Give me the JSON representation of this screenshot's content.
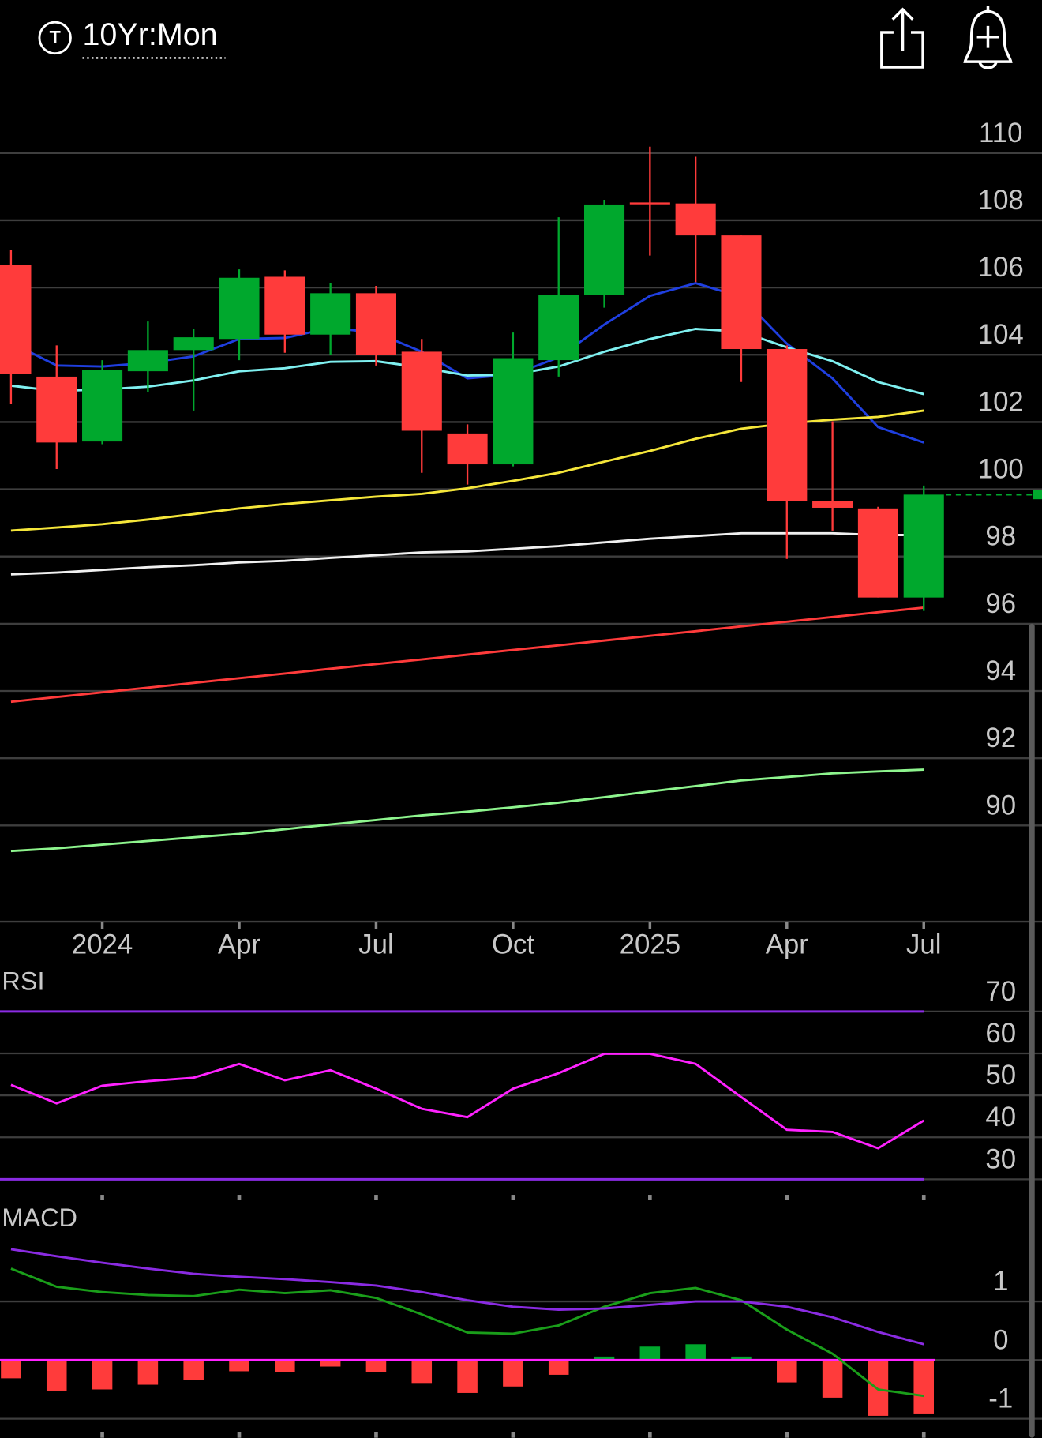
{
  "header": {
    "badge": "T",
    "title": "10Yr:Mon"
  },
  "chart_data": [
    {
      "type": "candlestick",
      "categories": [
        null,
        null,
        "2024",
        null,
        null,
        "Apr",
        null,
        null,
        "Jul",
        null,
        null,
        "Oct",
        null,
        null,
        "2025",
        null,
        null,
        "Apr",
        null,
        null,
        "Jul"
      ],
      "open": [
        106.68,
        103.35,
        101.42,
        103.51,
        104.14,
        104.47,
        106.32,
        104.6,
        105.83,
        104.09,
        101.66,
        100.74,
        103.84,
        105.78,
        108.53,
        108.5,
        107.55,
        104.17,
        99.65,
        99.43,
        96.78
      ],
      "high": [
        107.11,
        104.28,
        103.84,
        104.99,
        104.77,
        106.54,
        106.51,
        106.13,
        106.05,
        104.47,
        101.93,
        104.66,
        108.09,
        108.61,
        110.19,
        109.89,
        107.55,
        104.28,
        102.02,
        99.48,
        100.11
      ],
      "low": [
        102.53,
        100.6,
        101.34,
        102.89,
        102.34,
        103.84,
        104.06,
        104.0,
        103.68,
        100.49,
        100.14,
        100.68,
        103.35,
        105.4,
        106.95,
        106.16,
        103.19,
        97.93,
        98.77,
        96.78,
        96.38
      ],
      "close": [
        103.43,
        101.39,
        103.54,
        104.14,
        104.52,
        106.29,
        104.6,
        105.83,
        104.0,
        101.74,
        100.74,
        103.9,
        105.78,
        108.47,
        108.5,
        107.55,
        104.17,
        99.65,
        99.45,
        96.78,
        99.84
      ],
      "up_color": "#00a82d",
      "down_color": "#ff3b3b",
      "overlays": [
        {
          "color": "#1f3fe0",
          "values": [
            104.36,
            103.68,
            103.65,
            103.76,
            103.95,
            104.47,
            104.5,
            104.8,
            104.66,
            104.09,
            103.3,
            103.41,
            103.92,
            104.9,
            105.75,
            106.13,
            105.72,
            104.33,
            103.3,
            101.85,
            101.39
          ]
        },
        {
          "color": "#7ff0f0",
          "values": [
            103.08,
            102.92,
            102.97,
            103.05,
            103.24,
            103.51,
            103.6,
            103.79,
            103.81,
            103.62,
            103.38,
            103.41,
            103.65,
            104.09,
            104.47,
            104.77,
            104.69,
            104.22,
            103.81,
            103.19,
            102.83
          ]
        },
        {
          "color": "#f5e63a",
          "values": [
            98.77,
            98.86,
            98.96,
            99.1,
            99.26,
            99.43,
            99.56,
            99.67,
            99.78,
            99.86,
            100.03,
            100.25,
            100.49,
            100.82,
            101.14,
            101.5,
            101.8,
            101.96,
            102.07,
            102.15,
            102.34
          ]
        },
        {
          "color": "#f0f0f0",
          "values": [
            97.47,
            97.52,
            97.6,
            97.68,
            97.74,
            97.82,
            97.87,
            97.96,
            98.04,
            98.12,
            98.15,
            98.23,
            98.31,
            98.42,
            98.53,
            98.61,
            98.69,
            98.69,
            98.69,
            98.64,
            98.64
          ]
        },
        {
          "color": "#ff3b3b",
          "values": [
            93.68,
            93.82,
            93.96,
            94.1,
            94.24,
            94.38,
            94.52,
            94.66,
            94.8,
            94.94,
            95.08,
            95.22,
            95.36,
            95.5,
            95.64,
            95.78,
            95.92,
            96.06,
            96.2,
            96.34,
            96.48
          ]
        },
        {
          "color": "#8ef58e",
          "values": [
            89.24,
            89.32,
            89.43,
            89.54,
            89.65,
            89.75,
            89.89,
            90.03,
            90.16,
            90.3,
            90.41,
            90.54,
            90.68,
            90.84,
            91.01,
            91.17,
            91.34,
            91.44,
            91.55,
            91.61,
            91.66
          ]
        }
      ],
      "ylim": [
        87.14,
        111
      ],
      "yticks": [
        90,
        92,
        94,
        96,
        98,
        100,
        102,
        104,
        106,
        108,
        110
      ],
      "grid": true
    },
    {
      "type": "line",
      "title": "RSI",
      "color": "#ff22ff",
      "values": [
        52.5,
        48.1,
        52.3,
        53.4,
        54.2,
        57.5,
        53.6,
        56.0,
        51.6,
        46.8,
        44.8,
        51.6,
        55.3,
        59.9,
        59.9,
        57.5,
        49.6,
        41.8,
        41.3,
        37.4,
        44.0
      ],
      "ylim": [
        26.3,
        79.4
      ],
      "yticks": [
        30,
        40,
        50,
        60,
        70
      ],
      "levels": [
        70,
        30
      ],
      "level_color": "#8a2be2",
      "grid": true
    },
    {
      "type": "macd",
      "title": "MACD",
      "series": [
        {
          "color": "#1a9e1a",
          "values": [
            1.56,
            1.25,
            1.16,
            1.11,
            1.09,
            1.2,
            1.14,
            1.19,
            1.06,
            0.78,
            0.47,
            0.45,
            0.59,
            0.91,
            1.14,
            1.23,
            1.02,
            0.52,
            0.11,
            -0.5,
            -0.61
          ]
        },
        {
          "color": "#8a2be2",
          "values": [
            1.89,
            1.77,
            1.66,
            1.56,
            1.47,
            1.42,
            1.38,
            1.33,
            1.27,
            1.16,
            1.02,
            0.91,
            0.86,
            0.88,
            0.94,
            1.0,
            1.0,
            0.91,
            0.73,
            0.48,
            0.27
          ]
        }
      ],
      "histogram": [
        -0.31,
        -0.52,
        -0.5,
        -0.42,
        -0.34,
        -0.19,
        -0.2,
        -0.11,
        -0.2,
        -0.39,
        -0.56,
        -0.45,
        -0.25,
        0.06,
        0.23,
        0.27,
        0.06,
        -0.38,
        -0.64,
        -0.95,
        -0.91
      ],
      "up_color": "#00a82d",
      "down_color": "#ff3b3b",
      "zero_color": "#ff22ff",
      "ylim": [
        -1.23,
        2.63
      ],
      "yticks": [
        -1,
        0,
        1
      ],
      "grid": true
    }
  ]
}
